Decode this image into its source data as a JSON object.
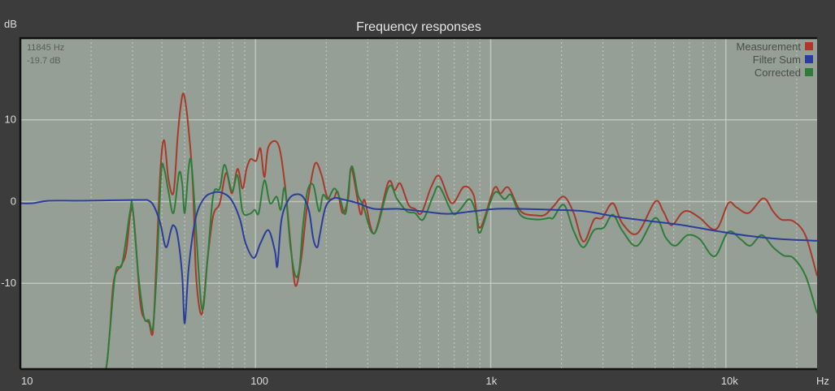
{
  "chart_data": {
    "type": "line",
    "title": "Frequency responses",
    "xlabel": "Hz",
    "ylabel": "dB",
    "xscale": "log",
    "xlim": [
      10,
      24430
    ],
    "ylim": [
      -20.5,
      20
    ],
    "x_ticks": [
      {
        "value": 10,
        "label": "10"
      },
      {
        "value": 100,
        "label": "100"
      },
      {
        "value": 1000,
        "label": "1k"
      },
      {
        "value": 10000,
        "label": "10k"
      }
    ],
    "y_ticks": [
      {
        "value": 10,
        "label": "10"
      },
      {
        "value": 0,
        "label": "0"
      },
      {
        "value": -10,
        "label": "-10"
      }
    ],
    "grid": true,
    "legend_position": "top-right",
    "cursor_readout": {
      "freq": "11845 Hz",
      "level": "-19.7 dB"
    },
    "colors": {
      "background": "#3c3c3c",
      "plot": "#969f95"
    },
    "series": [
      {
        "name": "Measurement",
        "color": "#a8392b",
        "points": [
          [
            10,
            -22
          ],
          [
            21.3,
            -22
          ],
          [
            23.1,
            -20.5
          ],
          [
            24,
            -16
          ],
          [
            25,
            -9.6
          ],
          [
            27.1,
            -7.6
          ],
          [
            28.2,
            -6.1
          ],
          [
            30,
            -0.9
          ],
          [
            32.3,
            -12.1
          ],
          [
            33.8,
            -14.4
          ],
          [
            35.2,
            -14.8
          ],
          [
            36.6,
            -16
          ],
          [
            37.8,
            -8.1
          ],
          [
            39.4,
            3.8
          ],
          [
            40.9,
            7.5
          ],
          [
            42.6,
            2.8
          ],
          [
            44.8,
            1.1
          ],
          [
            46.6,
            7.7
          ],
          [
            48.1,
            11.7
          ],
          [
            49.6,
            13.1
          ],
          [
            52,
            8.7
          ],
          [
            54.2,
            1.8
          ],
          [
            55.9,
            -9.1
          ],
          [
            59.1,
            -13.8
          ],
          [
            62.5,
            -7.1
          ],
          [
            66.1,
            -1.7
          ],
          [
            70.5,
            -0.2
          ],
          [
            75,
            3.5
          ],
          [
            79.4,
            1
          ],
          [
            83.9,
            4
          ],
          [
            88.1,
            1.6
          ],
          [
            91.6,
            4
          ],
          [
            95.3,
            5.2
          ],
          [
            100.7,
            5
          ],
          [
            104.9,
            6.5
          ],
          [
            109.1,
            3
          ],
          [
            113.5,
            6.7
          ],
          [
            124.9,
            7
          ],
          [
            133.3,
            2.1
          ],
          [
            140.9,
            -5.1
          ],
          [
            147.8,
            -10.3
          ],
          [
            156.3,
            -7.1
          ],
          [
            166.4,
            -0.2
          ],
          [
            178.9,
            4.6
          ],
          [
            190.6,
            3.3
          ],
          [
            201.5,
            0.6
          ],
          [
            214.8,
            0.4
          ],
          [
            223.5,
            1.2
          ],
          [
            234.6,
            -1.4
          ],
          [
            247.9,
            0.4
          ],
          [
            255.9,
            4.1
          ],
          [
            279.4,
            -1.5
          ],
          [
            290.7,
            0.2
          ],
          [
            320,
            -3.9
          ],
          [
            366,
            2.3
          ],
          [
            390.6,
            1.4
          ],
          [
            412.8,
            2.2
          ],
          [
            447.5,
            -0.4
          ],
          [
            476.5,
            -0.9
          ],
          [
            507.8,
            -1.4
          ],
          [
            558.8,
            1.8
          ],
          [
            605.5,
            3.1
          ],
          [
            682,
            -0.2
          ],
          [
            769,
            1.8
          ],
          [
            845.6,
            0.8
          ],
          [
            901.4,
            -3.2
          ],
          [
            1033,
            1.6
          ],
          [
            1101,
            1
          ],
          [
            1191,
            1.7
          ],
          [
            1344,
            -1.2
          ],
          [
            1575,
            -1.7
          ],
          [
            1705,
            -1.6
          ],
          [
            1847,
            -0.6
          ],
          [
            2048,
            0.6
          ],
          [
            2253,
            -1.4
          ],
          [
            2479,
            -4.9
          ],
          [
            2750,
            -2.2
          ],
          [
            2978,
            -2
          ],
          [
            3304,
            -0.2
          ],
          [
            3635,
            -2.7
          ],
          [
            4198,
            -3.9
          ],
          [
            5000,
            0
          ],
          [
            5416,
            -1.2
          ],
          [
            5866,
            -2.9
          ],
          [
            6501,
            -1.4
          ],
          [
            6982,
            -1.2
          ],
          [
            7745,
            -2
          ],
          [
            9086,
            -3.4
          ],
          [
            10240,
            -0.2
          ],
          [
            11090,
            -0.7
          ],
          [
            12500,
            -1.4
          ],
          [
            14430,
            0.4
          ],
          [
            15880,
            -1.2
          ],
          [
            17180,
            -2.2
          ],
          [
            19370,
            -2.4
          ],
          [
            21830,
            -4.2
          ],
          [
            24430,
            -9.1
          ]
        ]
      },
      {
        "name": "Filter Sum",
        "color": "#2b3d9c",
        "points": [
          [
            10,
            -0.2
          ],
          [
            11.3,
            -0.2
          ],
          [
            13.2,
            0.1
          ],
          [
            18.2,
            0.1
          ],
          [
            31.8,
            0.2
          ],
          [
            35.2,
            0.1
          ],
          [
            37.2,
            -0.7
          ],
          [
            39.4,
            -2.7
          ],
          [
            41.6,
            -5.6
          ],
          [
            43.7,
            -3.5
          ],
          [
            44.8,
            -2.9
          ],
          [
            46.6,
            -4.1
          ],
          [
            48.8,
            -9.1
          ],
          [
            50,
            -14.9
          ],
          [
            52,
            -8.1
          ],
          [
            55.5,
            -2.2
          ],
          [
            60.1,
            0.3
          ],
          [
            66.1,
            1.1
          ],
          [
            73.3,
            1
          ],
          [
            79.4,
            0.1
          ],
          [
            85.9,
            -2.2
          ],
          [
            90.8,
            -5.1
          ],
          [
            98.4,
            -6.9
          ],
          [
            104.9,
            -5.1
          ],
          [
            113.5,
            -3.5
          ],
          [
            121,
            -6.1
          ],
          [
            123.9,
            -7.9
          ],
          [
            129,
            -2.2
          ],
          [
            138.7,
            0.3
          ],
          [
            150.1,
            0.9
          ],
          [
            160,
            0.5
          ],
          [
            169,
            -1.2
          ],
          [
            176.1,
            -4.6
          ],
          [
            183.2,
            -5.6
          ],
          [
            187.6,
            -4.1
          ],
          [
            198.5,
            -0.7
          ],
          [
            214.8,
            0.4
          ],
          [
            232.8,
            0.3
          ],
          [
            272.8,
            -0.2
          ],
          [
            320,
            -0.9
          ],
          [
            406.3,
            -0.9
          ],
          [
            516.2,
            -1.2
          ],
          [
            655.7,
            -1.5
          ],
          [
            832.2,
            -1.2
          ],
          [
            1057,
            -0.9
          ],
          [
            1344,
            -0.9
          ],
          [
            1847,
            -1
          ],
          [
            2541,
            -1.2
          ],
          [
            3493,
            -1.9
          ],
          [
            4808,
            -2.4
          ],
          [
            6607,
            -2.9
          ],
          [
            9086,
            -3.6
          ],
          [
            12500,
            -4.2
          ],
          [
            17180,
            -4.6
          ],
          [
            24430,
            -4.8
          ]
        ]
      },
      {
        "name": "Corrected",
        "color": "#2f7c3a",
        "points": [
          [
            10,
            -20.5
          ],
          [
            21.3,
            -22
          ],
          [
            23.1,
            -20.5
          ],
          [
            24,
            -16
          ],
          [
            25.4,
            -8.6
          ],
          [
            27.1,
            -7.6
          ],
          [
            29.3,
            -1.2
          ],
          [
            30,
            -0.7
          ],
          [
            31.8,
            -9.1
          ],
          [
            33.6,
            -14.2
          ],
          [
            35.2,
            -14.5
          ],
          [
            36.6,
            -15.5
          ],
          [
            38.1,
            -8.1
          ],
          [
            39.7,
            3.5
          ],
          [
            40.9,
            4
          ],
          [
            42.6,
            1.3
          ],
          [
            44.8,
            -1.4
          ],
          [
            47.3,
            3.5
          ],
          [
            48.8,
            2.2
          ],
          [
            50,
            -1.4
          ],
          [
            52,
            4.2
          ],
          [
            53.3,
            4.9
          ],
          [
            55,
            -0.2
          ],
          [
            59.1,
            -13.1
          ],
          [
            62.5,
            -7.1
          ],
          [
            66.1,
            0.8
          ],
          [
            70.5,
            1.6
          ],
          [
            73.9,
            4.5
          ],
          [
            79.4,
            1.3
          ],
          [
            83.9,
            3.2
          ],
          [
            88.1,
            -1.2
          ],
          [
            94.6,
            -1.5
          ],
          [
            99.3,
            -1
          ],
          [
            103.2,
            -1.4
          ],
          [
            109.1,
            2.6
          ],
          [
            115.3,
            -0.2
          ],
          [
            123,
            0.6
          ],
          [
            128,
            -1
          ],
          [
            133.3,
            1.6
          ],
          [
            140.9,
            -5.6
          ],
          [
            147.8,
            -9.1
          ],
          [
            153.7,
            -8.1
          ],
          [
            158.8,
            -3.2
          ],
          [
            166.4,
            1.3
          ],
          [
            176.1,
            2
          ],
          [
            186.2,
            -1.2
          ],
          [
            193.6,
            0.8
          ],
          [
            203.2,
            0.3
          ],
          [
            216.5,
            1.6
          ],
          [
            229.1,
            0.3
          ],
          [
            242,
            -1.4
          ],
          [
            255.9,
            4.3
          ],
          [
            272.8,
            0.8
          ],
          [
            286.1,
            -0.4
          ],
          [
            320,
            -3.9
          ],
          [
            368.7,
            1.8
          ],
          [
            399.9,
            0.3
          ],
          [
            440.3,
            -1.2
          ],
          [
            476.5,
            -1.4
          ],
          [
            516.2,
            -2.2
          ],
          [
            567.8,
            0.6
          ],
          [
            605.5,
            1.8
          ],
          [
            687.5,
            -1.4
          ],
          [
            739.2,
            -1
          ],
          [
            812.8,
            0.3
          ],
          [
            866.3,
            -1.4
          ],
          [
            901.4,
            -3.8
          ],
          [
            1033,
            1
          ],
          [
            1145,
            0.3
          ],
          [
            1221,
            0.8
          ],
          [
            1344,
            -1.7
          ],
          [
            1575,
            -2.2
          ],
          [
            1774,
            -2
          ],
          [
            1847,
            -2
          ],
          [
            2048,
            -0.4
          ],
          [
            2253,
            -3.6
          ],
          [
            2479,
            -5.6
          ],
          [
            2750,
            -3.5
          ],
          [
            3026,
            -3.2
          ],
          [
            3304,
            -1.6
          ],
          [
            3635,
            -3.6
          ],
          [
            4198,
            -5.4
          ],
          [
            5000,
            -2
          ],
          [
            5546,
            -4.4
          ],
          [
            6101,
            -5.4
          ],
          [
            6871,
            -4.1
          ],
          [
            7745,
            -4.6
          ],
          [
            8946,
            -6.7
          ],
          [
            10240,
            -3.7
          ],
          [
            11540,
            -4.6
          ],
          [
            12700,
            -5.4
          ],
          [
            14200,
            -4.1
          ],
          [
            15880,
            -5.6
          ],
          [
            17600,
            -6.6
          ],
          [
            19370,
            -6.9
          ],
          [
            21830,
            -9.1
          ],
          [
            24430,
            -13.7
          ]
        ]
      }
    ]
  }
}
